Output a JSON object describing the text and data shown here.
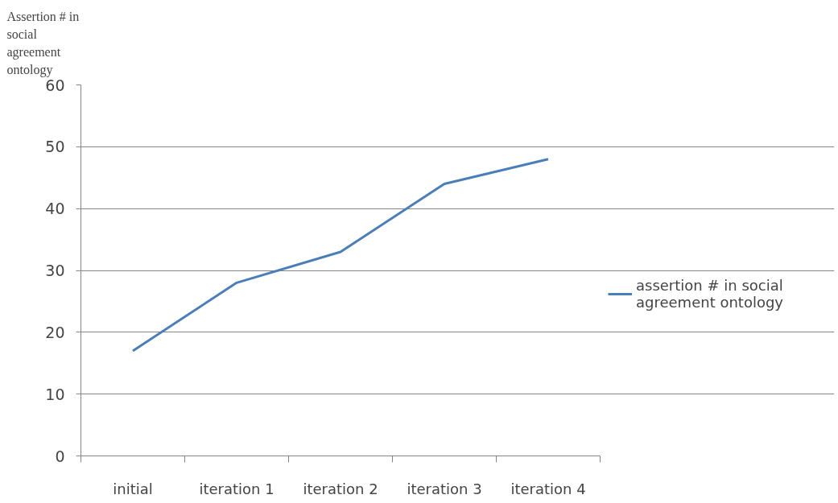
{
  "chart_data": {
    "type": "line",
    "ylabel": "Assertion # in social agreement ontology",
    "categories": [
      "initial",
      "iteration 1",
      "iteration 2",
      "iteration 3",
      "iteration 4"
    ],
    "series": [
      {
        "name": "assertion # in social agreement ontology",
        "color": "#4a7ebb",
        "values": [
          17,
          28,
          33,
          44,
          48
        ]
      }
    ],
    "ylim": [
      0,
      60
    ],
    "yticks": [
      0,
      10,
      20,
      30,
      40,
      50,
      60
    ],
    "grid": "y",
    "legend": "right",
    "marker": "none",
    "line_style": "solid"
  }
}
